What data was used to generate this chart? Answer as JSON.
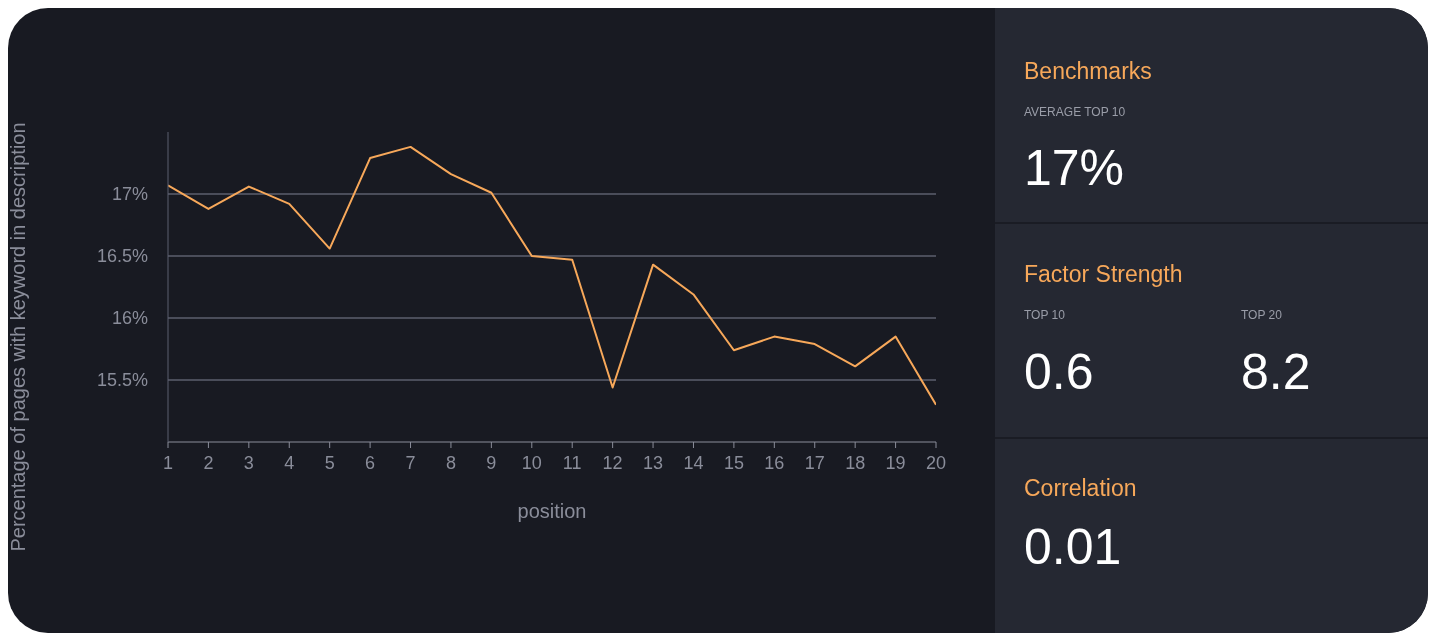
{
  "chart_data": [
    {
      "type": "line",
      "xlabel": "position",
      "ylabel": "Percentage of pages with keyword in description",
      "x": [
        1,
        2,
        3,
        4,
        5,
        6,
        7,
        8,
        9,
        10,
        11,
        12,
        13,
        14,
        15,
        16,
        17,
        18,
        19,
        20
      ],
      "series": [
        {
          "color": "#f7a85a",
          "values": [
            17.07,
            16.88,
            17.06,
            16.92,
            16.56,
            17.29,
            17.38,
            17.16,
            17.01,
            16.5,
            16.47,
            15.44,
            16.43,
            16.19,
            15.74,
            15.85,
            15.79,
            15.61,
            15.85,
            15.3
          ]
        }
      ],
      "xlim": [
        1,
        20
      ],
      "xticks": [
        1,
        2,
        3,
        4,
        5,
        6,
        7,
        8,
        9,
        10,
        11,
        12,
        13,
        14,
        15,
        16,
        17,
        18,
        19,
        20
      ],
      "ylim": [
        15,
        17.5
      ],
      "yticks": [
        {
          "value": 15.5,
          "label": "15.5%"
        },
        {
          "value": 16,
          "label": "16%"
        },
        {
          "value": 16.5,
          "label": "16.5%"
        },
        {
          "value": 17,
          "label": "17%"
        }
      ],
      "grid": "y",
      "marker": "none",
      "line_style": "solid"
    },
    {
      "type": "other",
      "annotations": [
        "Benchmarks",
        "AVERAGE TOP 10",
        "17%",
        "Factor Strength",
        "TOP 10",
        "0.6",
        "TOP 20",
        "8.2",
        "Correlation",
        "0.01"
      ]
    }
  ]
}
